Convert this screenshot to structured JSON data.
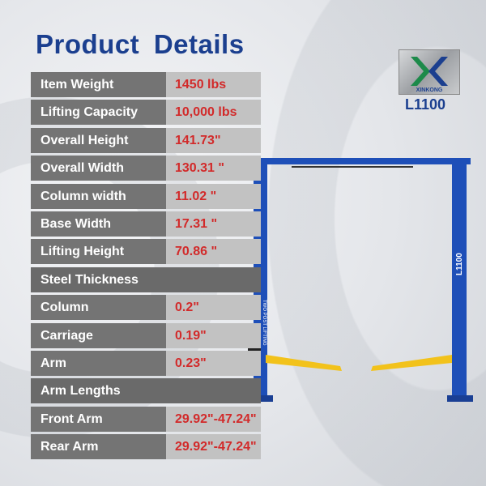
{
  "title": "Product  Details",
  "brand": {
    "logo_text": "XINKONG",
    "model": "L1100"
  },
  "specs": [
    {
      "label": "Item Weight",
      "value": "1450 lbs"
    },
    {
      "label": "Lifting Capacity",
      "value": "10,000 lbs"
    },
    {
      "label": "Overall Height",
      "value": "141.73\""
    },
    {
      "label": "Overall Width",
      "value": "130.31 \""
    },
    {
      "label": "Column width",
      "value": "11.02 \""
    },
    {
      "label": "Base Width",
      "value": "17.31 \""
    },
    {
      "label": "Lifting Height",
      "value": "70.86 \""
    },
    {
      "label": "Steel Thickness",
      "section": true
    },
    {
      "label": "Column",
      "value": "0.2\""
    },
    {
      "label": "Carriage",
      "value": "0.19\""
    },
    {
      "label": "Arm",
      "value": "0.23\""
    },
    {
      "label": "Arm Lengths",
      "section": true
    },
    {
      "label": "Front Arm",
      "value": "29.92\"-47.24\""
    },
    {
      "label": "Rear Arm",
      "value": "29.92\"-47.24\""
    }
  ],
  "lift": {
    "column_label_right": "L1100",
    "column_label_left": "TWO POST LIFTING"
  },
  "colors": {
    "title": "#1b3f8f",
    "value": "#d22a2a",
    "lift": "#1e4fb8",
    "arm": "#f2c21b"
  }
}
